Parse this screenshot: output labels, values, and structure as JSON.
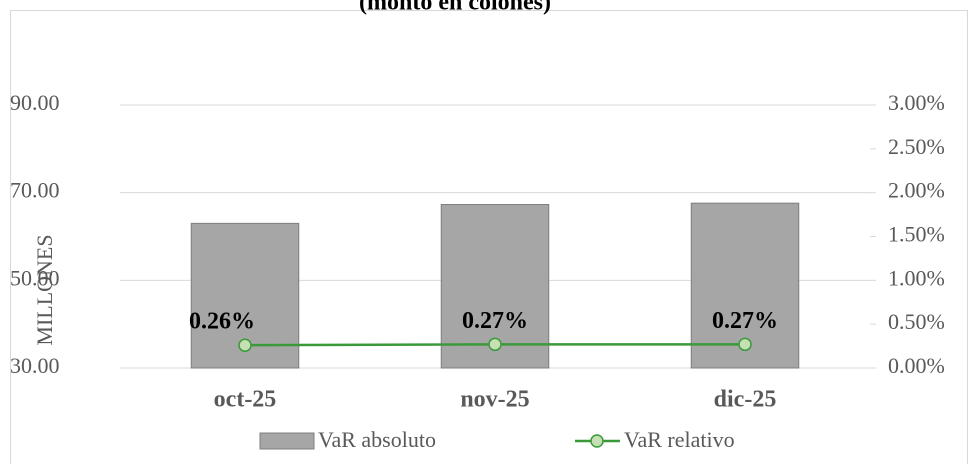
{
  "chart_data": {
    "type": "bar",
    "title": "(monto en colones)",
    "ylabel": "MILLONES",
    "categories": [
      "oct-25",
      "nov-25",
      "dic-25"
    ],
    "series": [
      {
        "name": "VaR absoluto",
        "type": "bar",
        "color": "#a6a6a6",
        "values": [
          63.0,
          67.3,
          67.6
        ]
      },
      {
        "name": "VaR relativo",
        "type": "line",
        "axis": "y2",
        "color": "#3a9a3a",
        "values": [
          0.26,
          0.27,
          0.27
        ],
        "value_labels": [
          "0.26%",
          "0.27%",
          "0.27%"
        ]
      }
    ],
    "ylim": [
      30,
      90
    ],
    "yticks": [
      {
        "value": 30,
        "label": "30.00"
      },
      {
        "value": 50,
        "label": "50.00"
      },
      {
        "value": 70,
        "label": "70.00"
      },
      {
        "value": 90,
        "label": "90.00"
      }
    ],
    "y2lim": [
      0,
      3
    ],
    "y2ticks": [
      {
        "value": 0,
        "label": "0.00%"
      },
      {
        "value": 0.5,
        "label": "0.50%"
      },
      {
        "value": 1,
        "label": "1.00%"
      },
      {
        "value": 1.5,
        "label": "1.50%"
      },
      {
        "value": 2,
        "label": "2.00%"
      },
      {
        "value": 2.5,
        "label": "2.50%"
      },
      {
        "value": 3,
        "label": "3.00%"
      }
    ],
    "grid": true
  }
}
